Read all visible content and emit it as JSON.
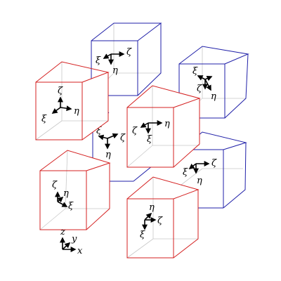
{
  "colors": {
    "blue": "#1f1fa8",
    "red": "#d42020",
    "axis": "#000000",
    "back_edge": "#c8c8c8"
  },
  "labels": {
    "xi": "ξ",
    "eta": "η",
    "zeta": "ζ",
    "x": "x",
    "y": "y",
    "z": "z"
  },
  "cubes": [
    {
      "id": "blue-top-center",
      "color": "blue"
    },
    {
      "id": "blue-top-right",
      "color": "blue"
    },
    {
      "id": "blue-middle-center",
      "color": "blue"
    },
    {
      "id": "blue-middle-right",
      "color": "blue"
    },
    {
      "id": "red-top-left",
      "color": "red"
    },
    {
      "id": "red-center",
      "color": "red"
    },
    {
      "id": "red-bottom-left",
      "color": "red"
    },
    {
      "id": "red-bottom-center",
      "color": "red"
    }
  ]
}
